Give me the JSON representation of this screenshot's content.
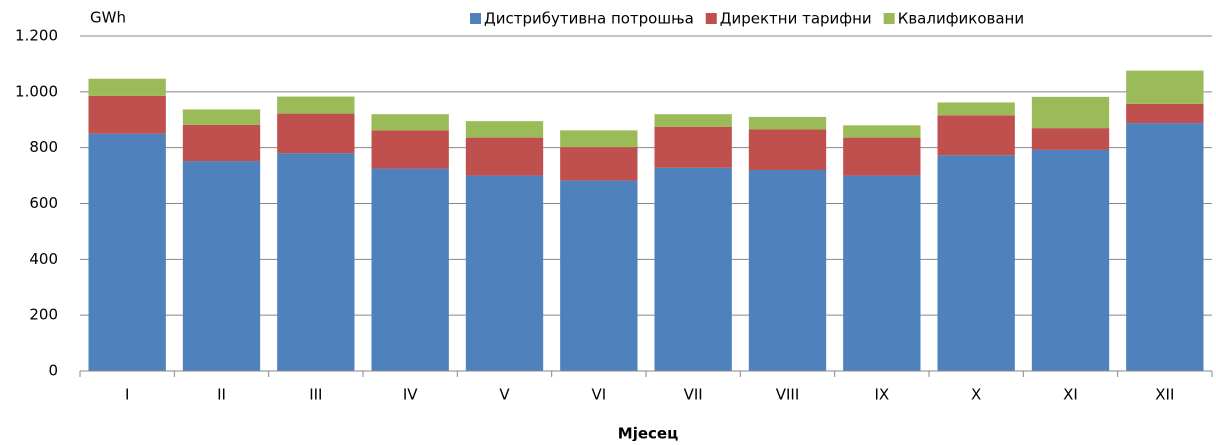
{
  "chart_data": {
    "type": "stacked_bar",
    "unit_label": "GWh",
    "x_label": "Мјесец",
    "categories": [
      "I",
      "II",
      "III",
      "IV",
      "V",
      "VI",
      "VII",
      "VIII",
      "IX",
      "X",
      "XI",
      "XII"
    ],
    "series": [
      {
        "name": "Дистрибутивна потрошња",
        "color": "#4f81bd",
        "values": [
          850,
          752,
          780,
          725,
          700,
          682,
          728,
          720,
          700,
          773,
          792,
          888
        ]
      },
      {
        "name": "Директни тарифни",
        "color": "#c0504d",
        "values": [
          136,
          130,
          142,
          137,
          136,
          120,
          147,
          145,
          136,
          143,
          78,
          69
        ]
      },
      {
        "name": "Квалификовани",
        "color": "#9bbb59",
        "values": [
          61,
          55,
          61,
          58,
          59,
          60,
          45,
          45,
          44,
          46,
          112,
          119
        ]
      }
    ],
    "ylim": [
      0,
      1200
    ],
    "yticks": [
      0,
      200,
      400,
      600,
      800,
      {
        "value": 1000,
        "label": "1.000"
      },
      {
        "value": 1200,
        "label": "1.200"
      }
    ],
    "grid": true,
    "legend": "top"
  }
}
